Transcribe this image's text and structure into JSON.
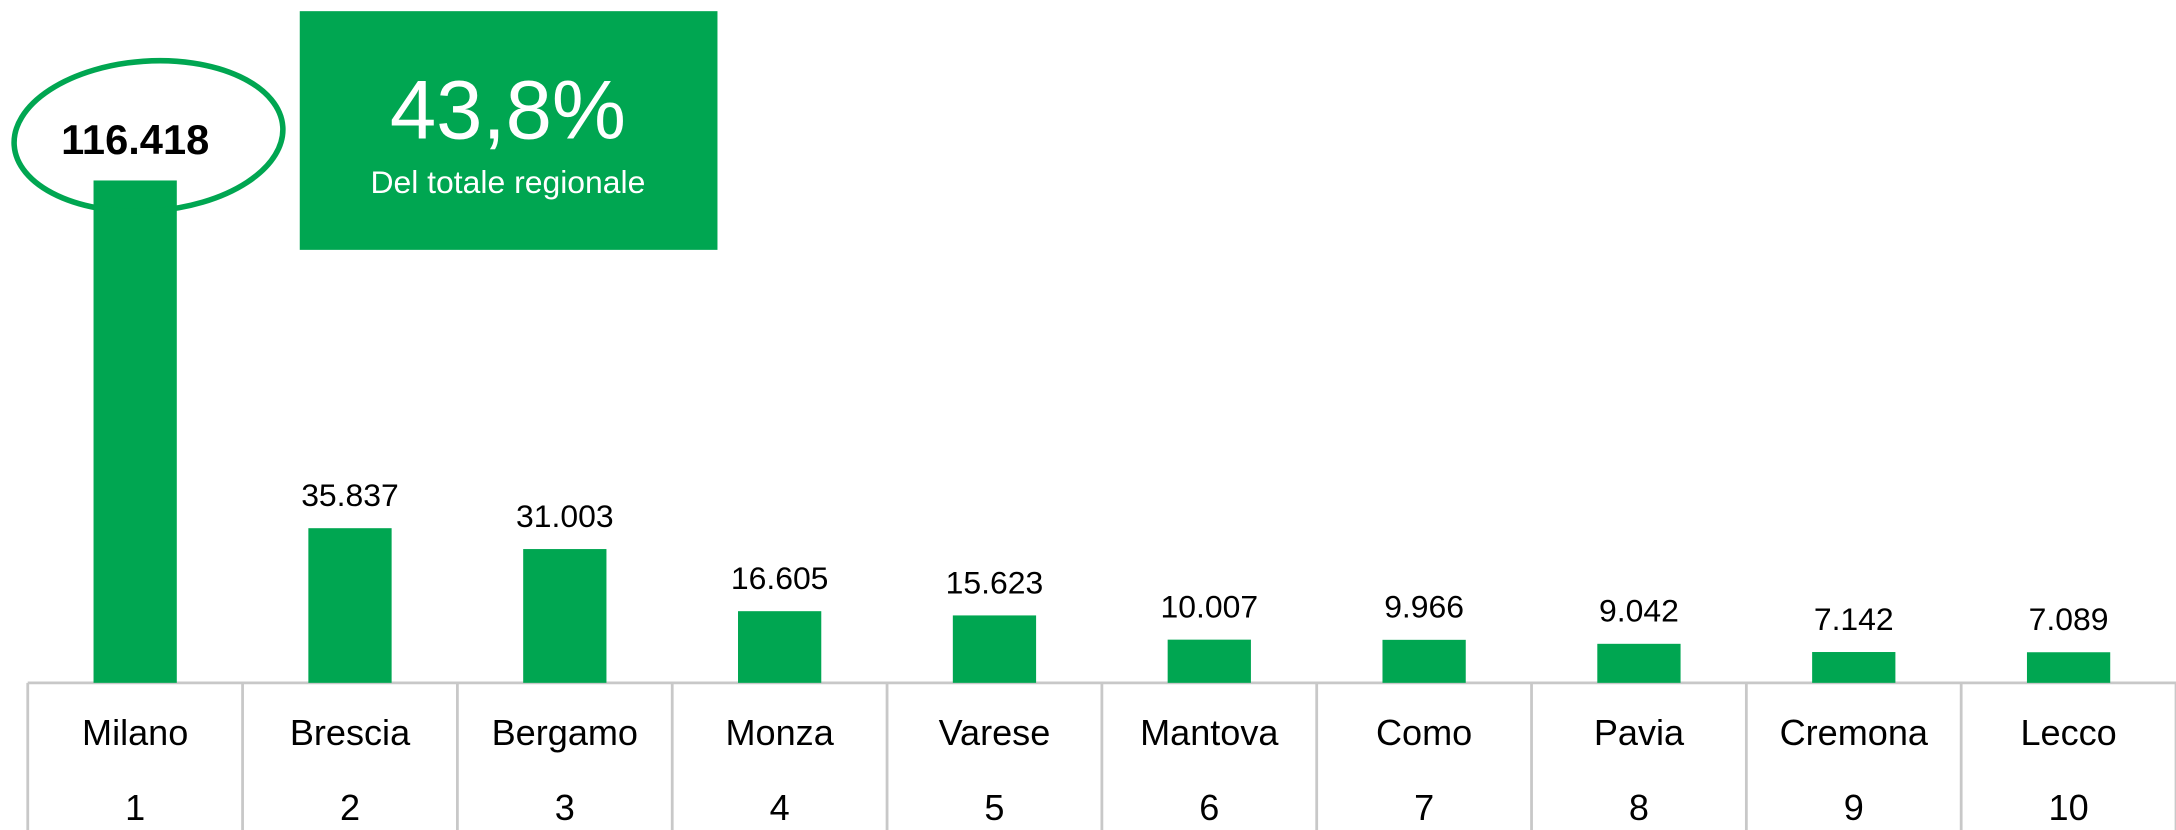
{
  "chart_data": {
    "type": "bar",
    "categories": [
      "Milano",
      "Brescia",
      "Bergamo",
      "Monza",
      "Varese",
      "Mantova",
      "Como",
      "Pavia",
      "Cremona",
      "Lecco"
    ],
    "ranks": [
      "1",
      "2",
      "3",
      "4",
      "5",
      "6",
      "7",
      "8",
      "9",
      "10"
    ],
    "values": [
      116418,
      35837,
      31003,
      16605,
      15623,
      10007,
      9966,
      9042,
      7142,
      7089
    ],
    "value_labels": [
      "116.418",
      "35.837",
      "31.003",
      "16.605",
      "15.623",
      "10.007",
      "9.966",
      "9.042",
      "7.142",
      "7.089"
    ],
    "color": "#00a651",
    "annotation": {
      "value": "43,8%",
      "text": "Del totale regionale"
    }
  }
}
